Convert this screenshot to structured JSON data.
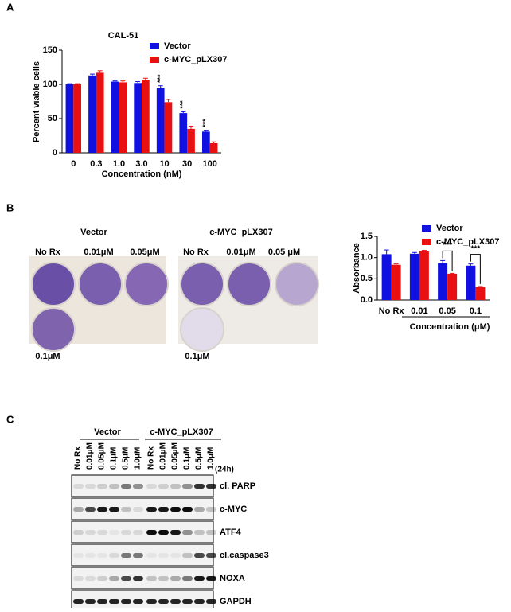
{
  "panel_labels": [
    "A",
    "B",
    "C"
  ],
  "chart_data": [
    {
      "type": "bar",
      "title": "CAL-51",
      "x_label": "Concentration (nM)",
      "y_label": "Percent viable cells",
      "categories": [
        "0",
        "0.3",
        "1.0",
        "3.0",
        "10",
        "30",
        "100"
      ],
      "series": [
        {
          "name": "Vector",
          "color": "#1010e0",
          "values": [
            100,
            113,
            104,
            102,
            95,
            58,
            31
          ],
          "errors": [
            1,
            2,
            1,
            2,
            3,
            2,
            2
          ]
        },
        {
          "name": "c-MYC_pLX307",
          "color": "#e81010",
          "values": [
            100,
            117,
            103,
            106,
            74,
            35,
            14
          ],
          "errors": [
            1,
            3,
            2,
            3,
            4,
            4,
            2
          ]
        }
      ],
      "significance": [
        null,
        null,
        null,
        null,
        "***",
        "***",
        "***"
      ],
      "ylim": [
        0,
        150
      ],
      "yticks": [
        0,
        50,
        100,
        150
      ],
      "legend": "top-right"
    },
    {
      "type": "bar",
      "x_label": "Concentration (μM)",
      "y_label": "Absorbance",
      "categories": [
        "No Rx",
        "0.01",
        "0.05",
        "0.1"
      ],
      "series": [
        {
          "name": "Vector",
          "color": "#1010e0",
          "values": [
            1.08,
            1.09,
            0.87,
            0.81
          ],
          "errors": [
            0.1,
            0.03,
            0.06,
            0.04
          ]
        },
        {
          "name": "c-MYC_pLX307",
          "color": "#e81010",
          "values": [
            0.83,
            1.15,
            0.62,
            0.31
          ],
          "errors": [
            0.02,
            0.02,
            0.01,
            0.01
          ]
        }
      ],
      "significance": [
        null,
        null,
        "***",
        "***"
      ],
      "ylim": [
        0,
        1.5
      ],
      "yticks": [
        {
          "value": 0,
          "label": "0.0"
        },
        {
          "value": 0.5,
          "label": "0.5"
        },
        {
          "value": 1,
          "label": "1.0"
        },
        {
          "value": 1.5,
          "label": "1.5"
        }
      ],
      "legend": "top-right"
    }
  ],
  "plates": [
    {
      "title": "Vector",
      "labels": [
        "No Rx",
        "0.01μM",
        "0.05μM",
        "0.1μM"
      ]
    },
    {
      "title": "c-MYC_pLX307",
      "labels": [
        "No Rx",
        "0.01μM",
        "0.05 μM",
        "0.1μM"
      ]
    }
  ],
  "blot": {
    "groups": [
      "Vector",
      "c-MYC_pLX307"
    ],
    "lanes": [
      "No Rx",
      "0.01μM",
      "0.05μM",
      "0.1μM",
      "0.5μM",
      "1.0μM",
      "No Rx",
      "0.01μM",
      "0.05μM",
      "0.1μM",
      "0.5μM",
      "1.0μM"
    ],
    "time": "(24h)",
    "proteins": [
      "cl. PARP",
      "c-MYC",
      "ATF4",
      "cl.caspase3",
      "NOXA",
      "GAPDH"
    ]
  }
}
